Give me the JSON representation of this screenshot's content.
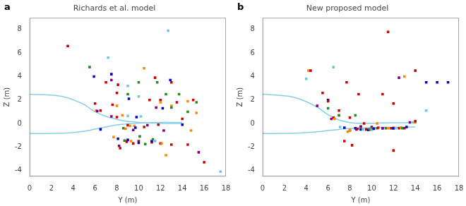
{
  "chart_data": [
    {
      "type": "scatter",
      "title": "Richards et al. model",
      "annotation": "a",
      "x_label": "Y (m)",
      "y_label": "Z (m)",
      "xlim": [
        0,
        18
      ],
      "ylim": [
        -4.5,
        9
      ],
      "xticks": [
        0,
        2,
        4,
        6,
        8,
        10,
        12,
        14,
        16,
        18
      ],
      "yticks": [
        -4,
        -2,
        0,
        2,
        4,
        6,
        8
      ],
      "grid": false,
      "series": [
        {
          "type": "line",
          "color": "#87CEEB",
          "x": [
            0,
            3,
            5,
            6,
            7,
            8,
            9,
            10,
            11,
            12,
            13,
            14
          ],
          "values": [
            2.5,
            2.3,
            1.6,
            1.0,
            0.6,
            0.35,
            0.18,
            0.1,
            0.05,
            0.02,
            0.01,
            0.01
          ]
        },
        {
          "type": "line",
          "color": "#87CEEB",
          "x": [
            0,
            3,
            5,
            6,
            7,
            8,
            9,
            10,
            11,
            12,
            13,
            14
          ],
          "values": [
            -0.85,
            -0.82,
            -0.65,
            -0.48,
            -0.3,
            -0.12,
            -0.02,
            0.04,
            0.07,
            0.09,
            0.1,
            0.1
          ]
        },
        {
          "type": "scatter",
          "marker": "square",
          "x": [
            3.5,
            5.5,
            5.9,
            6.0,
            6.1,
            6.2,
            6.5,
            6.5,
            7.0,
            7.2,
            7.5,
            7.5,
            7.5,
            7.6,
            7.7,
            8.0,
            8.0,
            8.0,
            8.1,
            8.1,
            8.2,
            8.3,
            8.5,
            8.6,
            8.7,
            8.8,
            8.9,
            9.0,
            9.0,
            9.0,
            9.0,
            9.0,
            9.1,
            9.2,
            9.3,
            9.5,
            9.5,
            9.6,
            9.7,
            9.8,
            10.0,
            10.0,
            10.0,
            10.0,
            10.1,
            10.2,
            10.5,
            10.5,
            10.6,
            10.8,
            11.0,
            11.2,
            11.2,
            11.3,
            11.5,
            11.5,
            11.6,
            11.7,
            11.8,
            12.0,
            12.0,
            12.0,
            12.1,
            12.2,
            12.3,
            12.5,
            12.5,
            12.7,
            12.9,
            13.0,
            13.0,
            13.0,
            13.0,
            13.5,
            13.7,
            14.0,
            14.0,
            14.5,
            14.5,
            14.5,
            14.8,
            15.0,
            15.3,
            15.3,
            15.5,
            16.0,
            17.5
          ],
          "values": [
            6.6,
            4.8,
            4.0,
            1.7,
            1.1,
            1.05,
            1.1,
            -0.5,
            3.5,
            5.6,
            4.2,
            3.7,
            0.6,
            1.6,
            -1.15,
            2.6,
            1.5,
            0.55,
            3.3,
            -1.3,
            -1.9,
            -2.1,
            0.7,
            -0.4,
            -1.45,
            -0.45,
            -1.55,
            3.2,
            2.5,
            0.65,
            -0.15,
            -1.4,
            2.1,
            -0.2,
            -1.5,
            -1.7,
            -0.55,
            -0.2,
            -0.35,
            0.55,
            3.5,
            2.3,
            -1.5,
            -1.65,
            -1.1,
            0.6,
            4.7,
            -0.3,
            -1.75,
            -0.15,
            2.0,
            -1.6,
            -1.5,
            -1.35,
            3.9,
            -1.5,
            1.35,
            3.5,
            -0.1,
            2.0,
            1.8,
            -1.7,
            -1.7,
            1.3,
            -0.6,
            -2.7,
            2.5,
            7.9,
            3.7,
            1.5,
            3.5,
            1.35,
            -1.8,
            1.8,
            2.5,
            0.4,
            -0.1,
            1.9,
            1.0,
            -1.8,
            -0.6,
            2.0,
            1.8,
            0.9,
            -2.45,
            -3.3,
            -4.1
          ],
          "colors": [
            "#cc0000",
            "#228B22",
            "#0000cc",
            "#cc0000",
            "#ff8800",
            "#800080",
            "#cc0000",
            "#0000cc",
            "#cc0000",
            "#6ec6e6",
            "#0000cc",
            "#800080",
            "#800080",
            "#cc0000",
            "#ff8800",
            "#cc0000",
            "#ff8800",
            "#cc0000",
            "#cc0000",
            "#0000cc",
            "#800080",
            "#cc0000",
            "#ff8800",
            "#228B22",
            "#228B22",
            "#ff8800",
            "#cc0000",
            "#6ec6e6",
            "#228B22",
            "#6ec6e6",
            "#cc0000",
            "#0000cc",
            "#0000cc",
            "#ff8800",
            "#ff8800",
            "#cc0000",
            "#800080",
            "#ff8800",
            "#0000cc",
            "#0000cc",
            "#228B22",
            "#6ec6e6",
            "#cc0000",
            "#0000cc",
            "#228B22",
            "#6ec6e6",
            "#ff8800",
            "#cc0000",
            "#228B22",
            "#800080",
            "#cc0000",
            "#cc0000",
            "#0000cc",
            "#228B22",
            "#cc0000",
            "#6ec6e6",
            "#800080",
            "#228B22",
            "#cc0000",
            "#cc0000",
            "#ff8800",
            "#cc0000",
            "#ff8800",
            "#0000cc",
            "#800080",
            "#ff8800",
            "#228B22",
            "#6ec6e6",
            "#0000cc",
            "#ff8800",
            "#cc0000",
            "#228B22",
            "#cc0000",
            "#cc0000",
            "#228B22",
            "#cc0000",
            "#0000cc",
            "#ff8800",
            "#228B22",
            "#cc0000",
            "#ff8800",
            "#cc0000",
            "#228B22",
            "#ff8800",
            "#800080",
            "#cc0000",
            "#6ec6e6"
          ]
        }
      ]
    },
    {
      "type": "scatter",
      "title": "New proposed model",
      "annotation": "b",
      "x_label": "Y (m)",
      "y_label": "Z (m)",
      "xlim": [
        0,
        18
      ],
      "ylim": [
        -4.5,
        9
      ],
      "xticks": [
        0,
        2,
        4,
        6,
        8,
        10,
        12,
        14,
        16,
        18
      ],
      "yticks": [
        -4,
        -2,
        0,
        2,
        4,
        6,
        8
      ],
      "grid": false,
      "series": [
        {
          "type": "line",
          "color": "#87CEEB",
          "x": [
            0,
            3,
            5,
            6,
            7,
            8,
            9,
            10,
            11,
            12,
            13,
            14
          ],
          "values": [
            2.5,
            2.2,
            1.4,
            0.75,
            0.3,
            0.08,
            0.02,
            0.02,
            0.05,
            0.06,
            0.07,
            0.1
          ]
        },
        {
          "type": "line",
          "color": "#87CEEB",
          "x": [
            0,
            3,
            5,
            6,
            7,
            8,
            9,
            10,
            11,
            12,
            13,
            14
          ],
          "values": [
            -0.85,
            -0.82,
            -0.7,
            -0.6,
            -0.5,
            -0.42,
            -0.38,
            -0.35,
            -0.33,
            -0.32,
            -0.31,
            -0.3
          ]
        },
        {
          "type": "scatter",
          "marker": "square",
          "x": [
            4.0,
            4.2,
            4.4,
            5.0,
            5.5,
            6.0,
            6.0,
            6.0,
            6.3,
            6.5,
            6.5,
            6.6,
            7.0,
            7.0,
            7.0,
            7.1,
            7.5,
            7.5,
            7.7,
            7.8,
            8.0,
            8.0,
            8.0,
            8.0,
            8.2,
            8.5,
            8.5,
            8.6,
            8.7,
            8.8,
            9.0,
            9.0,
            9.0,
            9.0,
            9.2,
            9.3,
            9.5,
            9.5,
            9.7,
            9.8,
            10.0,
            10.0,
            10.0,
            10.0,
            10.1,
            10.2,
            10.5,
            10.5,
            10.6,
            11.0,
            11.0,
            11.0,
            11.3,
            11.5,
            11.5,
            11.7,
            11.8,
            12.0,
            12.0,
            12.0,
            12.0,
            12.0,
            12.0,
            12.2,
            12.5,
            12.5,
            12.7,
            12.8,
            13.0,
            13.0,
            13.2,
            13.5,
            13.8,
            14.0,
            14.0,
            14.0,
            15.0,
            15.0,
            16.0,
            17.0
          ],
          "values": [
            3.8,
            4.5,
            4.5,
            1.5,
            2.6,
            1.3,
            2.0,
            1.9,
            0.4,
            4.8,
            0.5,
            0.4,
            1.1,
            0.7,
            0.7,
            -0.3,
            -1.5,
            -0.35,
            3.5,
            -0.7,
            0.5,
            -0.6,
            -0.55,
            -0.55,
            -1.85,
            0.7,
            -0.4,
            -0.5,
            -0.45,
            2.5,
            -0.45,
            -0.5,
            -0.3,
            -0.25,
            -0.5,
            0.0,
            -0.5,
            -0.5,
            -0.55,
            -0.5,
            -0.5,
            -0.45,
            -0.3,
            -0.5,
            -0.4,
            -0.45,
            0.0,
            -0.4,
            -0.35,
            2.5,
            -0.4,
            -0.4,
            -0.4,
            7.8,
            -0.4,
            -0.4,
            -0.4,
            -0.35,
            -0.4,
            1.7,
            -0.4,
            -2.3,
            -0.4,
            -0.4,
            3.9,
            -0.4,
            -0.35,
            -0.4,
            4.0,
            -0.4,
            -0.3,
            0.1,
            0.1,
            0.1,
            0.2,
            4.5,
            3.5,
            1.1,
            3.5,
            3.5
          ],
          "colors": [
            "#6ec6e6",
            "#ff8800",
            "#cc0000",
            "#800080",
            "#cc0000",
            "#228B22",
            "#0000cc",
            "#cc0000",
            "#800080",
            "#6ec6e6",
            "#cc0000",
            "#ff8800",
            "#cc0000",
            "#ff8800",
            "#228B22",
            "#6ec6e6",
            "#cc0000",
            "#0000cc",
            "#cc0000",
            "#ff8800",
            "#cc0000",
            "#228B22",
            "#6ec6e6",
            "#ff8800",
            "#cc0000",
            "#228B22",
            "#0000cc",
            "#800080",
            "#cc0000",
            "#cc0000",
            "#228B22",
            "#0000cc",
            "#ff8800",
            "#800080",
            "#6ec6e6",
            "#cc0000",
            "#ff8800",
            "#cc0000",
            "#0000cc",
            "#228B22",
            "#cc0000",
            "#ff8800",
            "#800080",
            "#6ec6e6",
            "#228B22",
            "#0000cc",
            "#ff8800",
            "#228B22",
            "#cc0000",
            "#cc0000",
            "#0000cc",
            "#800080",
            "#228B22",
            "#cc0000",
            "#ff8800",
            "#6ec6e6",
            "#cc0000",
            "#ff8800",
            "#800080",
            "#cc0000",
            "#228B22",
            "#cc0000",
            "#0000cc",
            "#6ec6e6",
            "#800080",
            "#cc0000",
            "#ff8800",
            "#228B22",
            "#ff8800",
            "#cc0000",
            "#0000cc",
            "#800080",
            "#6ec6e6",
            "#ff8800",
            "#cc0000",
            "#cc0000",
            "#0000cc",
            "#6ec6e6",
            "#0000cc",
            "#0000cc"
          ]
        }
      ]
    }
  ]
}
